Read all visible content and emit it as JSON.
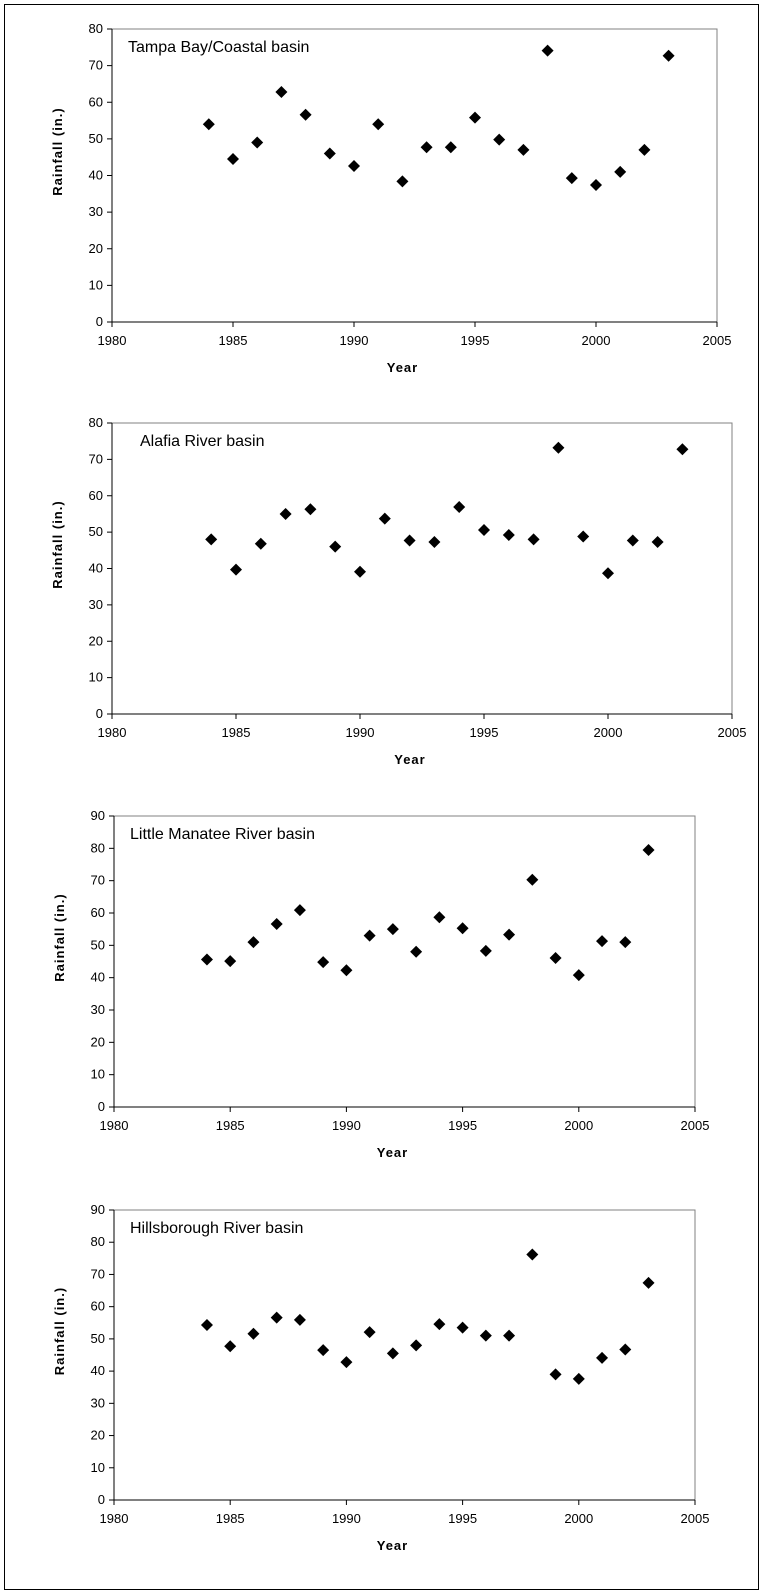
{
  "chart_data": [
    {
      "type": "scatter",
      "title": "Tampa Bay/Coastal basin",
      "xlabel": "Year",
      "ylabel": "Rainfall (in.)",
      "xlim": [
        1980,
        2005
      ],
      "ylim": [
        0,
        80
      ],
      "xticks": [
        1980,
        1985,
        1990,
        1995,
        2000,
        2005
      ],
      "yticks": [
        0,
        10,
        20,
        30,
        40,
        50,
        60,
        70,
        80
      ],
      "grid": false,
      "marker": "diamond",
      "color": "#000000",
      "x": [
        1984,
        1985,
        1986,
        1987,
        1988,
        1989,
        1990,
        1991,
        1992,
        1993,
        1994,
        1995,
        1996,
        1997,
        1998,
        1999,
        2000,
        2001,
        2002,
        2003
      ],
      "y": [
        54.0,
        44.5,
        49.0,
        62.8,
        56.6,
        46.0,
        42.6,
        54.0,
        38.4,
        47.7,
        47.7,
        55.8,
        49.8,
        47.0,
        74.1,
        39.3,
        37.4,
        41.0,
        47.0,
        72.7
      ]
    },
    {
      "type": "scatter",
      "title": "Alafia River basin",
      "xlabel": "Year",
      "ylabel": "Rainfall (in.)",
      "xlim": [
        1980,
        2005
      ],
      "ylim": [
        0,
        80
      ],
      "xticks": [
        1980,
        1985,
        1990,
        1995,
        2000,
        2005
      ],
      "yticks": [
        0,
        10,
        20,
        30,
        40,
        50,
        60,
        70,
        80
      ],
      "grid": false,
      "marker": "diamond",
      "color": "#000000",
      "x": [
        1984,
        1985,
        1986,
        1987,
        1988,
        1989,
        1990,
        1991,
        1992,
        1993,
        1994,
        1995,
        1996,
        1997,
        1998,
        1999,
        2000,
        2001,
        2002,
        2003
      ],
      "y": [
        48.0,
        39.7,
        46.8,
        55.0,
        56.3,
        46.0,
        39.1,
        53.7,
        47.7,
        47.3,
        56.9,
        50.6,
        49.2,
        48.0,
        73.2,
        48.8,
        38.7,
        47.7,
        47.3,
        72.8
      ]
    },
    {
      "type": "scatter",
      "title": "Little Manatee River basin",
      "xlabel": "Year",
      "ylabel": "Rainfall (in.)",
      "xlim": [
        1980,
        2005
      ],
      "ylim": [
        0,
        90
      ],
      "xticks": [
        1980,
        1985,
        1990,
        1995,
        2000,
        2005
      ],
      "yticks": [
        0,
        10,
        20,
        30,
        40,
        50,
        60,
        70,
        80,
        90
      ],
      "grid": false,
      "marker": "diamond",
      "color": "#000000",
      "x": [
        1984,
        1985,
        1986,
        1987,
        1988,
        1989,
        1990,
        1991,
        1992,
        1993,
        1994,
        1995,
        1996,
        1997,
        1998,
        1999,
        2000,
        2001,
        2002,
        2003
      ],
      "y": [
        45.6,
        45.1,
        51.0,
        56.6,
        60.9,
        44.8,
        42.3,
        53.0,
        55.0,
        48.0,
        58.7,
        55.3,
        48.3,
        53.3,
        70.3,
        46.1,
        40.8,
        51.3,
        51.0,
        79.5
      ]
    },
    {
      "type": "scatter",
      "title": "Hillsborough River basin",
      "xlabel": "Year",
      "ylabel": "Rainfall (in.)",
      "xlim": [
        1980,
        2005
      ],
      "ylim": [
        0,
        90
      ],
      "xticks": [
        1980,
        1985,
        1990,
        1995,
        2000,
        2005
      ],
      "yticks": [
        0,
        10,
        20,
        30,
        40,
        50,
        60,
        70,
        80,
        90
      ],
      "grid": false,
      "marker": "diamond",
      "color": "#000000",
      "x": [
        1984,
        1985,
        1986,
        1987,
        1988,
        1989,
        1990,
        1991,
        1992,
        1993,
        1994,
        1995,
        1996,
        1997,
        1998,
        1999,
        2000,
        2001,
        2002,
        2003
      ],
      "y": [
        54.3,
        47.7,
        51.6,
        56.6,
        55.9,
        46.5,
        42.8,
        52.1,
        45.5,
        48.0,
        54.6,
        53.5,
        51.0,
        51.0,
        76.2,
        39.0,
        37.6,
        44.1,
        46.7,
        67.4
      ]
    }
  ]
}
